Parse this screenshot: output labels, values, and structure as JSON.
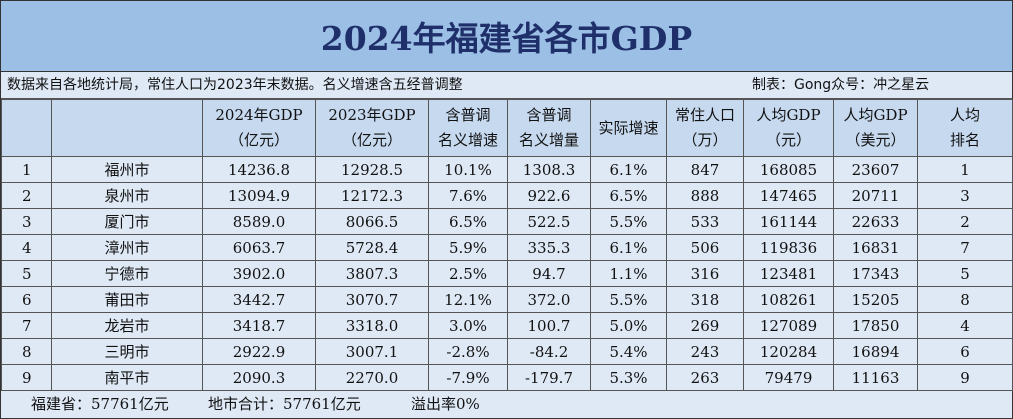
{
  "title": "2024年福建省各市GDP",
  "subtitle": {
    "note": "数据来自各地统计局，常住人口为2023年末数据。名义增速含五经普调整",
    "credit": "制表：Gong众号：冲之星云"
  },
  "headers": [
    {
      "line1": "",
      "line2": ""
    },
    {
      "line1": "",
      "line2": ""
    },
    {
      "line1": "2024年GDP",
      "line2": "（亿元）"
    },
    {
      "line1": "2023年GDP",
      "line2": "（亿元）"
    },
    {
      "line1": "含普调",
      "line2": "名义增速"
    },
    {
      "line1": "含普调",
      "line2": "名义增量"
    },
    {
      "line1": "实际增速",
      "line2": ""
    },
    {
      "line1": "常住人口",
      "line2": "（万）"
    },
    {
      "line1": "人均GDP",
      "line2": "（元）"
    },
    {
      "line1": "人均GDP",
      "line2": "（美元）"
    },
    {
      "line1": "人均",
      "line2": "排名"
    }
  ],
  "rows": [
    [
      "1",
      "福州市",
      "14236.8",
      "12928.5",
      "10.1%",
      "1308.3",
      "6.1%",
      "847",
      "168085",
      "23607",
      "1"
    ],
    [
      "2",
      "泉州市",
      "13094.9",
      "12172.3",
      "7.6%",
      "922.6",
      "6.5%",
      "888",
      "147465",
      "20711",
      "3"
    ],
    [
      "3",
      "厦门市",
      "8589.0",
      "8066.5",
      "6.5%",
      "522.5",
      "5.5%",
      "533",
      "161144",
      "22633",
      "2"
    ],
    [
      "4",
      "漳州市",
      "6063.7",
      "5728.4",
      "5.9%",
      "335.3",
      "6.1%",
      "506",
      "119836",
      "16831",
      "7"
    ],
    [
      "5",
      "宁德市",
      "3902.0",
      "3807.3",
      "2.5%",
      "94.7",
      "1.1%",
      "316",
      "123481",
      "17343",
      "5"
    ],
    [
      "6",
      "莆田市",
      "3442.7",
      "3070.7",
      "12.1%",
      "372.0",
      "5.5%",
      "318",
      "108261",
      "15205",
      "8"
    ],
    [
      "7",
      "龙岩市",
      "3418.7",
      "3318.0",
      "3.0%",
      "100.7",
      "5.0%",
      "269",
      "127089",
      "17850",
      "4"
    ],
    [
      "8",
      "三明市",
      "2922.9",
      "3007.1",
      "-2.8%",
      "-84.2",
      "5.4%",
      "243",
      "120284",
      "16894",
      "6"
    ],
    [
      "9",
      "南平市",
      "2090.3",
      "2270.0",
      "-7.9%",
      "-179.7",
      "5.3%",
      "263",
      "79479",
      "11163",
      "9"
    ]
  ],
  "footer": {
    "province_total": "福建省：57761亿元",
    "city_sum": "地市合计：57761亿元",
    "overflow_rate": "溢出率0%"
  }
}
